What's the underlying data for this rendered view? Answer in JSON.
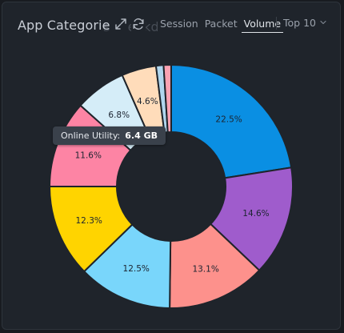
{
  "header": {
    "title": "App Categorie",
    "title_ghost": "s Breakdown",
    "expand_icon": "expand-icon",
    "refresh_icon": "refresh-icon",
    "tabs": [
      {
        "label": "Session",
        "active": false
      },
      {
        "label": "Packet",
        "active": false
      },
      {
        "label": "Volume",
        "active": true
      }
    ],
    "top_select": "Top 10",
    "top_select_icon": "chevron-down-icon"
  },
  "tooltip": {
    "label": "Online Utility:",
    "value": "6.4 GB"
  },
  "chart_data": {
    "type": "pie",
    "variant": "donut",
    "title": "",
    "slices": [
      {
        "label": "22.5%",
        "value": 22.5,
        "color": "#0a8fe3"
      },
      {
        "label": "14.6%",
        "value": 14.6,
        "color": "#9f5ccc"
      },
      {
        "label": "13.1%",
        "value": 13.1,
        "color": "#fd918c"
      },
      {
        "label": "12.5%",
        "value": 12.5,
        "color": "#79d6fb"
      },
      {
        "label": "12.3%",
        "value": 12.3,
        "color": "#ffd400"
      },
      {
        "label": "11.6%",
        "value": 11.6,
        "color": "#fd84a4"
      },
      {
        "label": "6.8%",
        "value": 6.8,
        "color": "#d5edf8"
      },
      {
        "label": "4.6%",
        "value": 4.6,
        "color": "#ffdcba"
      },
      {
        "label": "",
        "value": 1.0,
        "color": "#b0d6ee"
      },
      {
        "label": "",
        "value": 1.0,
        "color": "#fba2b2"
      }
    ],
    "gridlines": false,
    "legend": "none"
  }
}
